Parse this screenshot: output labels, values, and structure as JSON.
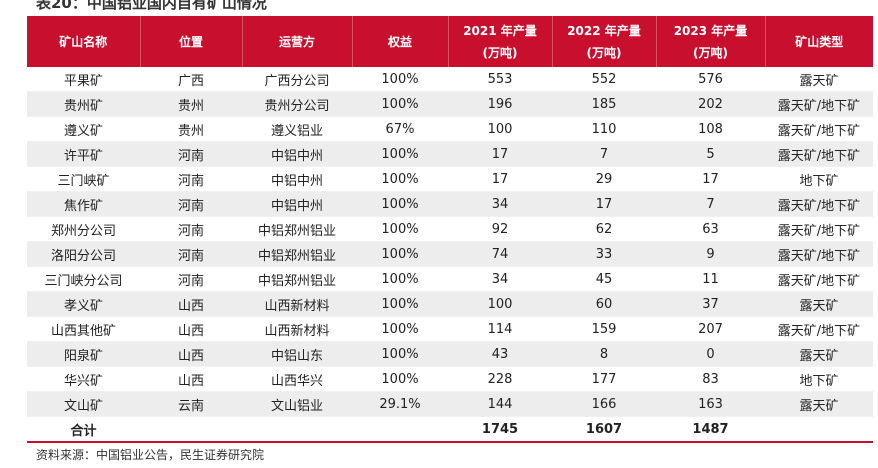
{
  "title": "表20：中国铝业国内自有矿山情况",
  "headers": [
    {
      "line1": "矿山名称",
      "line2": ""
    },
    {
      "line1": "位置",
      "line2": ""
    },
    {
      "line1": "运营方",
      "line2": ""
    },
    {
      "line1": "权益",
      "line2": ""
    },
    {
      "line1": "2021 年产量",
      "line2": "(万吨)"
    },
    {
      "line1": "2022 年产量",
      "line2": "(万吨)"
    },
    {
      "line1": "2023 年产量",
      "line2": "(万吨)"
    },
    {
      "line1": "矿山类型",
      "line2": ""
    }
  ],
  "rows": [
    [
      "平果矿",
      "广西",
      "广西分公司",
      "100%",
      "553",
      "552",
      "576",
      "露天矿"
    ],
    [
      "贵州矿",
      "贵州",
      "贵州分公司",
      "100%",
      "196",
      "185",
      "202",
      "露天矿/地下矿"
    ],
    [
      "遵义矿",
      "贵州",
      "遵义铝业",
      "67%",
      "100",
      "110",
      "108",
      "露天矿/地下矿"
    ],
    [
      "许平矿",
      "河南",
      "中铝中州",
      "100%",
      "17",
      "7",
      "5",
      "露天矿/地下矿"
    ],
    [
      "三门峡矿",
      "河南",
      "中铝中州",
      "100%",
      "17",
      "29",
      "17",
      "地下矿"
    ],
    [
      "焦作矿",
      "河南",
      "中铝中州",
      "100%",
      "34",
      "17",
      "7",
      "露天矿/地下矿"
    ],
    [
      "郑州分公司",
      "河南",
      "中铝郑州铝业",
      "100%",
      "92",
      "62",
      "63",
      "露天矿/地下矿"
    ],
    [
      "洛阳分公司",
      "河南",
      "中铝郑州铝业",
      "100%",
      "74",
      "33",
      "9",
      "露天矿/地下矿"
    ],
    [
      "三门峡分公司",
      "河南",
      "中铝郑州铝业",
      "100%",
      "34",
      "45",
      "11",
      "露天矿/地下矿"
    ],
    [
      "孝义矿",
      "山西",
      "山西新材料",
      "100%",
      "100",
      "60",
      "37",
      "露天矿"
    ],
    [
      "山西其他矿",
      "山西",
      "山西新材料",
      "100%",
      "114",
      "159",
      "207",
      "露天矿/地下矿"
    ],
    [
      "阳泉矿",
      "山西",
      "中铝山东",
      "100%",
      "43",
      "8",
      "0",
      "露天矿"
    ],
    [
      "华兴矿",
      "山西",
      "山西华兴",
      "100%",
      "228",
      "177",
      "83",
      "地下矿"
    ],
    [
      "文山矿",
      "云南",
      "文山铝业",
      "29.1%",
      "144",
      "166",
      "163",
      "露天矿"
    ]
  ],
  "total": [
    "合计",
    "",
    "",
    "",
    "1745",
    "1607",
    "1487",
    ""
  ],
  "source": "资料来源：中国铝业公告，民生证券研究院",
  "colors": {
    "header_bg": "#c8102e",
    "header_text": "#ffffff",
    "stripe": "#ededed"
  }
}
